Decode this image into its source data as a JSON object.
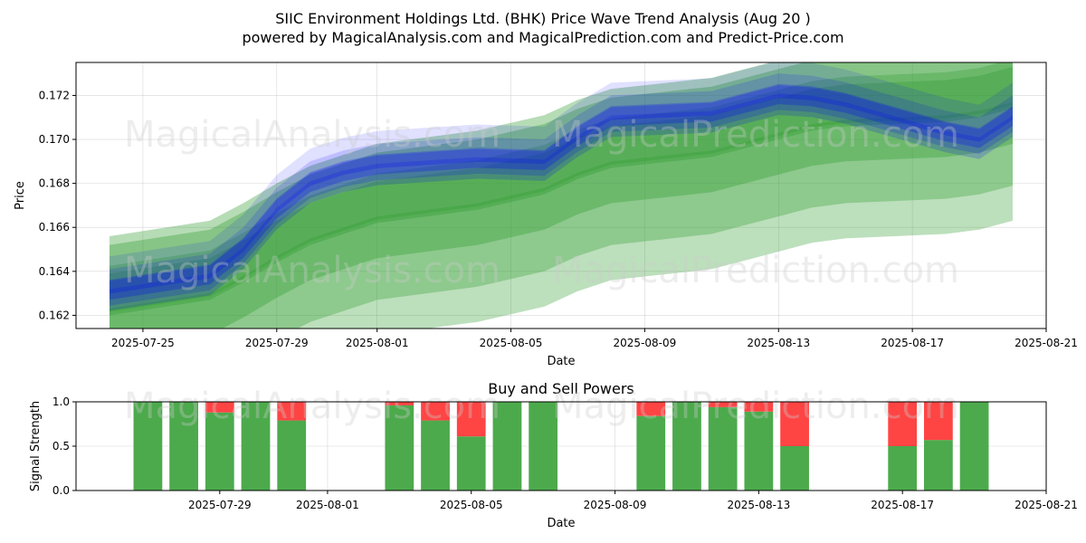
{
  "figure": {
    "title_line1": "SIIC Environment Holdings Ltd. (BHK) Price Wave Trend Analysis (Aug 20 )",
    "title_line2": "powered by MagicalAnalysis.com and MagicalPrediction.com and Predict-Price.com",
    "watermarks": [
      "MagicalAnalysis.com",
      "MagicalPrediction.com"
    ],
    "colors": {
      "blue": "#0000ff",
      "green": "#2e9a2e",
      "buy": "#4caa4c",
      "sell": "#ff4444"
    }
  },
  "chart_data": [
    {
      "type": "area",
      "title": "",
      "xlabel": "Date",
      "ylabel": "Price",
      "xlim": [
        "2025-07-23",
        "2025-08-21"
      ],
      "ylim": [
        0.1614,
        0.1735
      ],
      "xticks": [
        "2025-07-25",
        "2025-07-29",
        "2025-08-01",
        "2025-08-05",
        "2025-08-09",
        "2025-08-13",
        "2025-08-17",
        "2025-08-21"
      ],
      "yticks": [
        "0.162",
        "0.164",
        "0.166",
        "0.168",
        "0.170",
        "0.172"
      ],
      "series": [
        {
          "name": "Price wave (blue)",
          "color": "#0000ff",
          "x": [
            "2025-07-24",
            "2025-07-27",
            "2025-07-28",
            "2025-07-29",
            "2025-07-30",
            "2025-07-31",
            "2025-08-01",
            "2025-08-04",
            "2025-08-06",
            "2025-08-07",
            "2025-08-08",
            "2025-08-11",
            "2025-08-12",
            "2025-08-13",
            "2025-08-14",
            "2025-08-15",
            "2025-08-18",
            "2025-08-19",
            "2025-08-20"
          ],
          "values": [
            0.1633,
            0.164,
            0.1652,
            0.167,
            0.1682,
            0.1687,
            0.169,
            0.1693,
            0.1692,
            0.1703,
            0.1712,
            0.1714,
            0.1718,
            0.1722,
            0.1721,
            0.1718,
            0.1705,
            0.1702,
            0.1712
          ],
          "band_width": 0.0007
        },
        {
          "name": "Trend wave (green)",
          "color": "#2e9a2e",
          "x": [
            "2025-07-24",
            "2025-07-27",
            "2025-07-28",
            "2025-07-29",
            "2025-07-30",
            "2025-07-31",
            "2025-08-01",
            "2025-08-04",
            "2025-08-06",
            "2025-08-07",
            "2025-08-08",
            "2025-08-11",
            "2025-08-12",
            "2025-08-13",
            "2025-08-14",
            "2025-08-15",
            "2025-08-18",
            "2025-08-19",
            "2025-08-20"
          ],
          "values": [
            0.1628,
            0.1635,
            0.1643,
            0.1652,
            0.166,
            0.1665,
            0.167,
            0.1676,
            0.1683,
            0.169,
            0.1695,
            0.17,
            0.1704,
            0.1708,
            0.1712,
            0.1714,
            0.1716,
            0.1718,
            0.1722
          ],
          "band_width": 0.003
        }
      ]
    },
    {
      "type": "bar",
      "title": "Buy and Sell Powers",
      "xlabel": "Date",
      "ylabel": "Signal Strength",
      "ylim": [
        0,
        1
      ],
      "xlim": [
        "2025-07-25",
        "2025-08-21"
      ],
      "xticks": [
        "2025-07-29",
        "2025-08-01",
        "2025-08-05",
        "2025-08-09",
        "2025-08-13",
        "2025-08-17",
        "2025-08-21"
      ],
      "yticks": [
        "0.0",
        "0.5",
        "1.0"
      ],
      "categories": [
        "2025-07-27",
        "2025-07-28",
        "2025-07-29",
        "2025-07-30",
        "2025-07-31",
        "2025-08-03",
        "2025-08-04",
        "2025-08-05",
        "2025-08-06",
        "2025-08-07",
        "2025-08-10",
        "2025-08-11",
        "2025-08-12",
        "2025-08-13",
        "2025-08-14",
        "2025-08-17",
        "2025-08-18",
        "2025-08-19"
      ],
      "series": [
        {
          "name": "Buy",
          "color": "#4caa4c",
          "values": [
            1.0,
            1.0,
            0.88,
            1.0,
            0.79,
            0.96,
            0.79,
            0.61,
            1.0,
            1.0,
            0.84,
            1.0,
            0.94,
            0.89,
            0.5,
            0.5,
            0.57,
            1.0
          ]
        },
        {
          "name": "Sell",
          "color": "#ff4444",
          "values": [
            0.0,
            0.0,
            0.12,
            0.0,
            0.21,
            0.04,
            0.21,
            0.39,
            0.0,
            0.0,
            0.16,
            0.0,
            0.06,
            0.11,
            0.5,
            0.5,
            0.43,
            0.0
          ]
        }
      ]
    }
  ]
}
